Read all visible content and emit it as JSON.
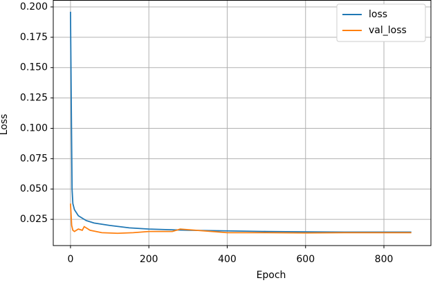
{
  "chart_data": {
    "type": "line",
    "xlabel": "Epoch",
    "ylabel": "Loss",
    "xlim": [
      -44,
      920
    ],
    "ylim": [
      0.0034,
      0.2057
    ],
    "xticks": [
      0,
      200,
      400,
      600,
      800
    ],
    "yticks": [
      {
        "value": 0.025,
        "label": "0.025"
      },
      {
        "value": 0.05,
        "label": "0.050"
      },
      {
        "value": 0.075,
        "label": "0.075"
      },
      {
        "value": 0.1,
        "label": "0.100"
      },
      {
        "value": 0.125,
        "label": "0.125"
      },
      {
        "value": 0.15,
        "label": "0.150"
      },
      {
        "value": 0.175,
        "label": "0.175"
      },
      {
        "value": 0.2,
        "label": "0.200"
      }
    ],
    "grid": true,
    "legend": "upper right",
    "series": [
      {
        "name": "loss",
        "color": "#1f77b4",
        "x": [
          0,
          2,
          4,
          6,
          10,
          20,
          40,
          60,
          100,
          150,
          200,
          300,
          400,
          500,
          600,
          700,
          800,
          870
        ],
        "values": [
          0.196,
          0.12,
          0.05,
          0.038,
          0.033,
          0.028,
          0.024,
          0.022,
          0.02,
          0.018,
          0.017,
          0.016,
          0.0155,
          0.015,
          0.0147,
          0.0145,
          0.0145,
          0.0145
        ]
      },
      {
        "name": "val_loss",
        "color": "#ff7f0e",
        "x": [
          0,
          3,
          6,
          10,
          20,
          30,
          35,
          50,
          80,
          120,
          160,
          200,
          260,
          280,
          320,
          400,
          500,
          600,
          700,
          800,
          870
        ],
        "values": [
          0.038,
          0.02,
          0.016,
          0.015,
          0.017,
          0.016,
          0.019,
          0.016,
          0.014,
          0.0135,
          0.014,
          0.015,
          0.015,
          0.017,
          0.016,
          0.014,
          0.014,
          0.0138,
          0.014,
          0.014,
          0.014
        ]
      }
    ]
  }
}
